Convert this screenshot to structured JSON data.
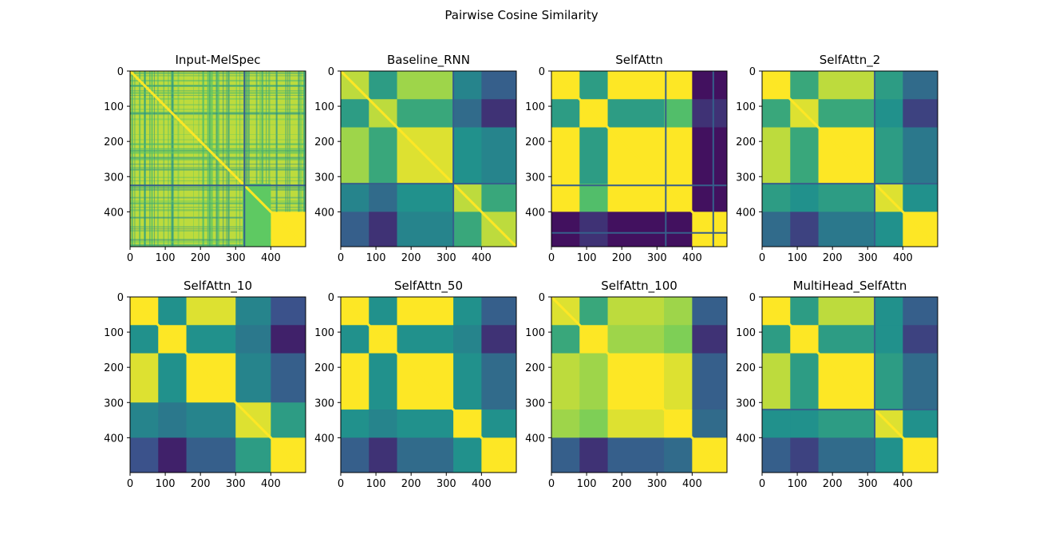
{
  "figure_title": "Pairwise Cosine Similarity",
  "chart_data": [
    {
      "type": "heatmap",
      "title": "Input-MelSpec",
      "colormap": "viridis",
      "xlim": [
        0,
        499
      ],
      "ylim": [
        499,
        0
      ],
      "xticks": [
        0,
        100,
        200,
        300,
        400
      ],
      "yticks": [
        0,
        100,
        200,
        300,
        400
      ],
      "regions": [
        {
          "x": [
            0,
            499
          ],
          "y": [
            0,
            499
          ],
          "value": 0.9,
          "texture": "stripes"
        },
        {
          "x": [
            400,
            499
          ],
          "y": [
            400,
            499
          ],
          "value": 1.0
        },
        {
          "x": [
            320,
            400
          ],
          "y": [
            320,
            499
          ],
          "value": 0.75
        }
      ],
      "diagonal": 1.0,
      "lines": [
        325
      ]
    },
    {
      "type": "heatmap",
      "title": "Baseline_RNN",
      "colormap": "viridis",
      "xlim": [
        0,
        499
      ],
      "ylim": [
        499,
        0
      ],
      "xticks": [
        0,
        100,
        200,
        300,
        400
      ],
      "yticks": [
        0,
        100,
        200,
        300,
        400
      ],
      "blocks": [
        0,
        80,
        160,
        320,
        400,
        499
      ],
      "matrix": [
        [
          0.9,
          0.55,
          0.85,
          0.45,
          0.3
        ],
        [
          0.55,
          0.9,
          0.6,
          0.35,
          0.15
        ],
        [
          0.85,
          0.6,
          0.95,
          0.5,
          0.45
        ],
        [
          0.45,
          0.35,
          0.5,
          0.9,
          0.6
        ],
        [
          0.3,
          0.15,
          0.45,
          0.6,
          0.9
        ]
      ],
      "diagonal": 1.0,
      "lines": [
        320
      ]
    },
    {
      "type": "heatmap",
      "title": "SelfAttn",
      "colormap": "viridis",
      "xlim": [
        0,
        499
      ],
      "ylim": [
        499,
        0
      ],
      "xticks": [
        0,
        100,
        200,
        300,
        400
      ],
      "yticks": [
        0,
        100,
        200,
        300,
        400
      ],
      "blocks": [
        0,
        80,
        160,
        320,
        400,
        499
      ],
      "matrix": [
        [
          1.0,
          0.55,
          1.0,
          1.0,
          0.05
        ],
        [
          0.55,
          1.0,
          0.55,
          0.7,
          0.15
        ],
        [
          1.0,
          0.55,
          1.0,
          1.0,
          0.05
        ],
        [
          1.0,
          0.7,
          1.0,
          1.0,
          0.05
        ],
        [
          0.05,
          0.15,
          0.05,
          0.05,
          1.0
        ]
      ],
      "diagonal": 1.0,
      "lines": [
        325,
        460
      ]
    },
    {
      "type": "heatmap",
      "title": "SelfAttn_2",
      "colormap": "viridis",
      "xlim": [
        0,
        499
      ],
      "ylim": [
        499,
        0
      ],
      "xticks": [
        0,
        100,
        200,
        300,
        400
      ],
      "yticks": [
        0,
        100,
        200,
        300,
        400
      ],
      "blocks": [
        0,
        80,
        160,
        320,
        400,
        499
      ],
      "matrix": [
        [
          1.0,
          0.6,
          0.9,
          0.55,
          0.35
        ],
        [
          0.6,
          0.95,
          0.6,
          0.5,
          0.2
        ],
        [
          0.9,
          0.6,
          1.0,
          0.55,
          0.4
        ],
        [
          0.55,
          0.5,
          0.55,
          0.95,
          0.5
        ],
        [
          0.35,
          0.2,
          0.4,
          0.5,
          1.0
        ]
      ],
      "diagonal": 1.0,
      "lines": [
        320
      ]
    },
    {
      "type": "heatmap",
      "title": "SelfAttn_10",
      "colormap": "viridis",
      "xlim": [
        0,
        499
      ],
      "ylim": [
        499,
        0
      ],
      "xticks": [
        0,
        100,
        200,
        300,
        400
      ],
      "yticks": [
        0,
        100,
        200,
        300,
        400
      ],
      "blocks": [
        0,
        80,
        160,
        300,
        400,
        499
      ],
      "matrix": [
        [
          1.0,
          0.5,
          0.95,
          0.45,
          0.25
        ],
        [
          0.5,
          1.0,
          0.5,
          0.4,
          0.1
        ],
        [
          0.95,
          0.5,
          1.0,
          0.45,
          0.3
        ],
        [
          0.45,
          0.4,
          0.45,
          0.95,
          0.55
        ],
        [
          0.25,
          0.1,
          0.3,
          0.55,
          1.0
        ]
      ],
      "diagonal": 1.0,
      "lines": []
    },
    {
      "type": "heatmap",
      "title": "SelfAttn_50",
      "colormap": "viridis",
      "xlim": [
        0,
        499
      ],
      "ylim": [
        499,
        0
      ],
      "xticks": [
        0,
        100,
        200,
        300,
        400
      ],
      "yticks": [
        0,
        100,
        200,
        300,
        400
      ],
      "blocks": [
        0,
        80,
        160,
        320,
        400,
        499
      ],
      "matrix": [
        [
          1.0,
          0.5,
          1.0,
          0.5,
          0.3
        ],
        [
          0.5,
          1.0,
          0.5,
          0.45,
          0.15
        ],
        [
          1.0,
          0.5,
          1.0,
          0.5,
          0.35
        ],
        [
          0.5,
          0.45,
          0.5,
          1.0,
          0.5
        ],
        [
          0.3,
          0.15,
          0.35,
          0.5,
          1.0
        ]
      ],
      "diagonal": 1.0,
      "lines": []
    },
    {
      "type": "heatmap",
      "title": "SelfAttn_100",
      "colormap": "viridis",
      "xlim": [
        0,
        499
      ],
      "ylim": [
        499,
        0
      ],
      "xticks": [
        0,
        100,
        200,
        300,
        400
      ],
      "yticks": [
        0,
        100,
        200,
        300,
        400
      ],
      "blocks": [
        0,
        80,
        160,
        320,
        400,
        499
      ],
      "matrix": [
        [
          0.95,
          0.6,
          0.9,
          0.85,
          0.3
        ],
        [
          0.6,
          1.0,
          0.85,
          0.8,
          0.15
        ],
        [
          0.9,
          0.85,
          1.0,
          0.95,
          0.3
        ],
        [
          0.85,
          0.8,
          0.95,
          1.0,
          0.35
        ],
        [
          0.3,
          0.15,
          0.3,
          0.35,
          1.0
        ]
      ],
      "diagonal": 1.0,
      "lines": []
    },
    {
      "type": "heatmap",
      "title": "MultiHead_SelfAttn",
      "colormap": "viridis",
      "xlim": [
        0,
        499
      ],
      "ylim": [
        499,
        0
      ],
      "xticks": [
        0,
        100,
        200,
        300,
        400
      ],
      "yticks": [
        0,
        100,
        200,
        300,
        400
      ],
      "blocks": [
        0,
        80,
        160,
        320,
        400,
        499
      ],
      "matrix": [
        [
          1.0,
          0.55,
          0.9,
          0.5,
          0.3
        ],
        [
          0.55,
          1.0,
          0.55,
          0.5,
          0.2
        ],
        [
          0.9,
          0.55,
          1.0,
          0.55,
          0.35
        ],
        [
          0.5,
          0.5,
          0.55,
          0.95,
          0.5
        ],
        [
          0.3,
          0.2,
          0.35,
          0.5,
          1.0
        ]
      ],
      "diagonal": 1.0,
      "lines": [
        320
      ]
    }
  ]
}
